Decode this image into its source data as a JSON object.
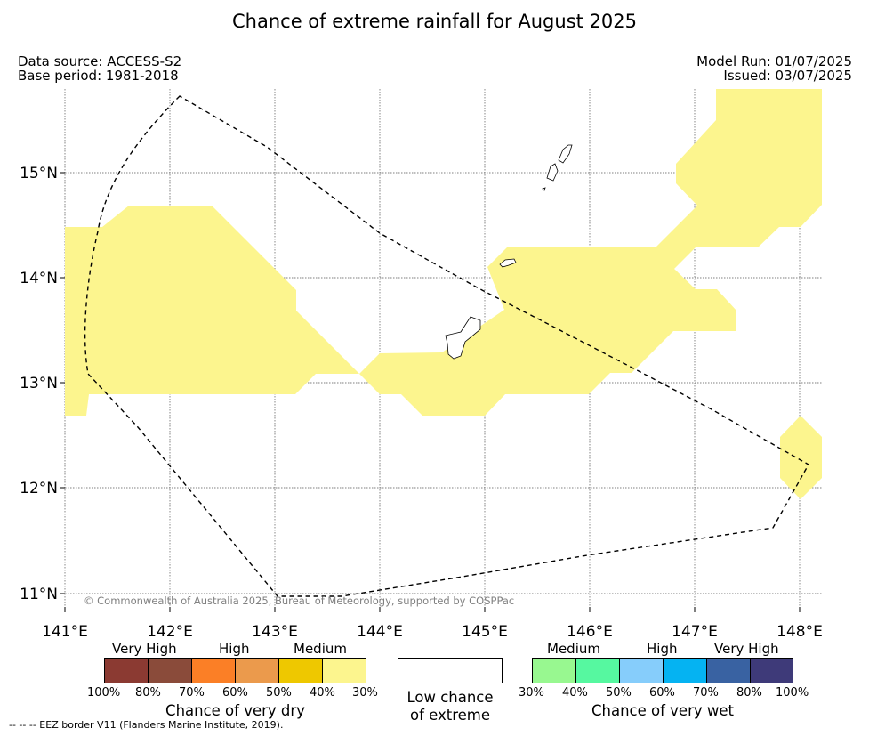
{
  "header": {
    "title": "Chance of extreme rainfall for August 2025",
    "data_source": "Data source: ACCESS-S2",
    "base_period": "Base period: 1981-2018",
    "model_run": "Model Run: 01/07/2025",
    "issued": "Issued: 03/07/2025"
  },
  "map": {
    "longitude_labels": [
      "141°E",
      "142°E",
      "143°E",
      "144°E",
      "145°E",
      "146°E",
      "147°E",
      "148°E"
    ],
    "latitude_labels": [
      "15°N",
      "14°N",
      "13°N",
      "12°N",
      "11°N"
    ],
    "copyright": "© Commonwealth of Australia 2025, Bureau of Meteorology, supported by COSPPac",
    "colors": {
      "medium_wet_dry_fill": "#fcf58e",
      "grid": "#555555",
      "eez_border": "#000000"
    }
  },
  "legend": {
    "dry": {
      "category_labels": [
        "Very High",
        "High",
        "Medium"
      ],
      "percent_labels": [
        "100%",
        "80%",
        "70%",
        "60%",
        "50%",
        "40%",
        "30%"
      ],
      "colors": [
        "#8b3a32",
        "#8a4b3a",
        "#fb7f26",
        "#eb9a4c",
        "#eec800",
        "#fcf58e"
      ],
      "title": "Chance of very dry"
    },
    "low": {
      "line1": "Low chance",
      "line2": "of extreme",
      "color": "#ffffff"
    },
    "wet": {
      "category_labels": [
        "Medium",
        "High",
        "Very High"
      ],
      "percent_labels": [
        "30%",
        "40%",
        "50%",
        "60%",
        "70%",
        "80%",
        "100%"
      ],
      "colors": [
        "#98f890",
        "#56f8a0",
        "#86cdfb",
        "#05b3f2",
        "#3962a2",
        "#3e3a79"
      ],
      "title": "Chance of very wet"
    }
  },
  "footnote": "--  --  -- EEZ border V11 (Flanders Marine Institute, 2019)."
}
